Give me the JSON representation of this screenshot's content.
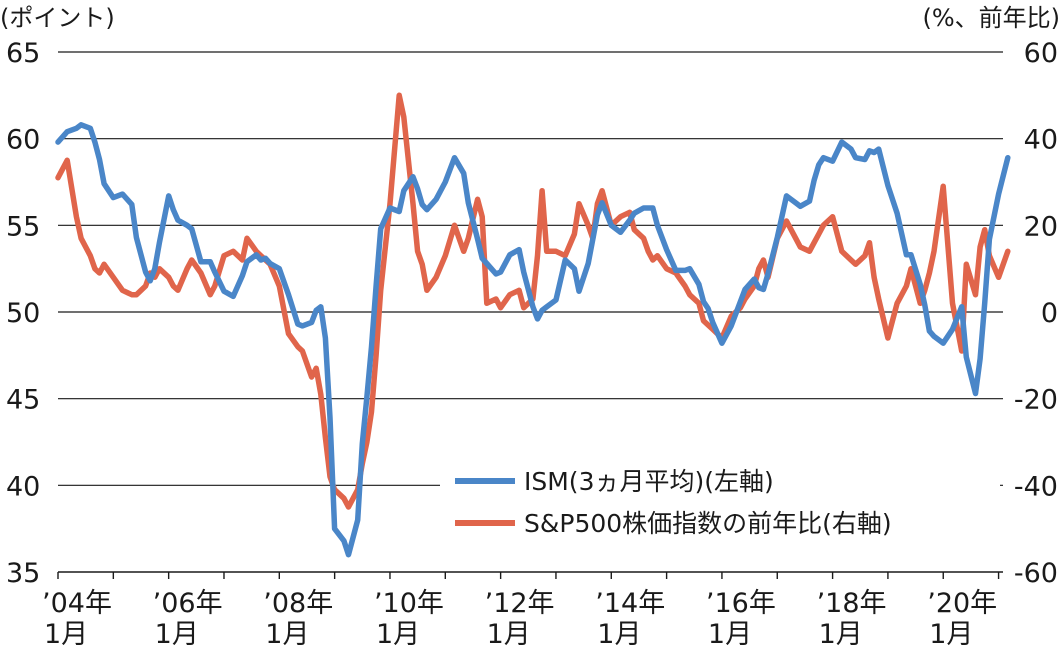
{
  "chart_data": {
    "type": "line",
    "left_axis_unit": "(ポイント)",
    "right_axis_unit": "(%、前年比)",
    "ylim_left": [
      35,
      65
    ],
    "ylim_right": [
      -60,
      60
    ],
    "yticks_left": [
      "65",
      "60",
      "55",
      "50",
      "45",
      "40",
      "35"
    ],
    "yticks_right": [
      "60",
      "40",
      "20",
      "0",
      "-20",
      "-40",
      "-60"
    ],
    "xtick_labels": [
      {
        "year": "’04年",
        "month": "1月"
      },
      {
        "year": "’06年",
        "month": "1月"
      },
      {
        "year": "’08年",
        "month": "1月"
      },
      {
        "year": "’10年",
        "month": "1月"
      },
      {
        "year": "’12年",
        "month": "1月"
      },
      {
        "year": "’14年",
        "month": "1月"
      },
      {
        "year": "’16年",
        "month": "1月"
      },
      {
        "year": "’18年",
        "month": "1月"
      },
      {
        "year": "’20年",
        "month": "1月"
      }
    ],
    "x_start": "2004-01",
    "x_end": "2021-01",
    "grid": "horizontal",
    "legend_position": "bottom-right",
    "series": [
      {
        "name": "ISM(3ヵ月平均)(左軸)",
        "axis": "left",
        "color": "#4a86c8",
        "points": [
          [
            "2004-01",
            59.8
          ],
          [
            "2004-03",
            60.4
          ],
          [
            "2004-05",
            60.6
          ],
          [
            "2004-06",
            60.8
          ],
          [
            "2004-08",
            60.6
          ],
          [
            "2004-09",
            59.8
          ],
          [
            "2004-10",
            58.8
          ],
          [
            "2004-11",
            57.4
          ],
          [
            "2005-01",
            56.6
          ],
          [
            "2005-03",
            56.8
          ],
          [
            "2005-05",
            56.2
          ],
          [
            "2005-06",
            54.3
          ],
          [
            "2005-08",
            52.3
          ],
          [
            "2005-09",
            51.8
          ],
          [
            "2005-10",
            52.5
          ],
          [
            "2005-11",
            54.0
          ],
          [
            "2006-01",
            56.7
          ],
          [
            "2006-02",
            55.9
          ],
          [
            "2006-03",
            55.3
          ],
          [
            "2006-05",
            55.0
          ],
          [
            "2006-06",
            54.8
          ],
          [
            "2006-08",
            52.9
          ],
          [
            "2006-10",
            52.9
          ],
          [
            "2006-11",
            52.3
          ],
          [
            "2007-01",
            51.2
          ],
          [
            "2007-03",
            50.9
          ],
          [
            "2007-05",
            52.1
          ],
          [
            "2007-06",
            52.9
          ],
          [
            "2007-08",
            53.3
          ],
          [
            "2007-09",
            53.0
          ],
          [
            "2007-10",
            53.1
          ],
          [
            "2007-11",
            52.8
          ],
          [
            "2008-01",
            52.5
          ],
          [
            "2008-03",
            51.0
          ],
          [
            "2008-05",
            49.3
          ],
          [
            "2008-06",
            49.2
          ],
          [
            "2008-08",
            49.4
          ],
          [
            "2008-09",
            50.1
          ],
          [
            "2008-10",
            50.3
          ],
          [
            "2008-11",
            48.5
          ],
          [
            "2008-12",
            43.9
          ],
          [
            "2009-01",
            37.5
          ],
          [
            "2009-03",
            36.8
          ],
          [
            "2009-04",
            36.0
          ],
          [
            "2009-06",
            38.0
          ],
          [
            "2009-07",
            42.4
          ],
          [
            "2009-08",
            45.1
          ],
          [
            "2009-09",
            48.0
          ],
          [
            "2009-10",
            51.5
          ],
          [
            "2009-11",
            54.8
          ],
          [
            "2010-01",
            56.0
          ],
          [
            "2010-03",
            55.8
          ],
          [
            "2010-04",
            57.0
          ],
          [
            "2010-06",
            57.8
          ],
          [
            "2010-07",
            57.1
          ],
          [
            "2010-08",
            56.2
          ],
          [
            "2010-09",
            55.9
          ],
          [
            "2010-11",
            56.5
          ],
          [
            "2011-01",
            57.5
          ],
          [
            "2011-03",
            58.9
          ],
          [
            "2011-05",
            58.0
          ],
          [
            "2011-06",
            56.3
          ],
          [
            "2011-08",
            54.2
          ],
          [
            "2011-09",
            53.1
          ],
          [
            "2011-10",
            52.8
          ],
          [
            "2011-12",
            52.2
          ],
          [
            "2012-01",
            52.3
          ],
          [
            "2012-03",
            53.3
          ],
          [
            "2012-05",
            53.6
          ],
          [
            "2012-06",
            52.3
          ],
          [
            "2012-08",
            50.3
          ],
          [
            "2012-09",
            49.6
          ],
          [
            "2012-10",
            50.1
          ],
          [
            "2012-11",
            50.3
          ],
          [
            "2013-01",
            50.7
          ],
          [
            "2013-03",
            53.0
          ],
          [
            "2013-05",
            52.5
          ],
          [
            "2013-06",
            51.2
          ],
          [
            "2013-08",
            52.8
          ],
          [
            "2013-09",
            54.2
          ],
          [
            "2013-10",
            55.6
          ],
          [
            "2013-11",
            56.3
          ],
          [
            "2014-01",
            55.0
          ],
          [
            "2014-03",
            54.6
          ],
          [
            "2014-05",
            55.3
          ],
          [
            "2014-06",
            55.7
          ],
          [
            "2014-08",
            56.0
          ],
          [
            "2014-09",
            56.0
          ],
          [
            "2014-10",
            56.0
          ],
          [
            "2014-11",
            55.0
          ],
          [
            "2015-01",
            53.6
          ],
          [
            "2015-03",
            52.4
          ],
          [
            "2015-05",
            52.4
          ],
          [
            "2015-06",
            52.5
          ],
          [
            "2015-08",
            51.6
          ],
          [
            "2015-09",
            50.6
          ],
          [
            "2015-10",
            50.2
          ],
          [
            "2015-11",
            49.4
          ],
          [
            "2016-01",
            48.2
          ],
          [
            "2016-03",
            49.2
          ],
          [
            "2016-05",
            50.6
          ],
          [
            "2016-06",
            51.3
          ],
          [
            "2016-08",
            51.9
          ],
          [
            "2016-09",
            51.4
          ],
          [
            "2016-10",
            51.3
          ],
          [
            "2016-11",
            52.2
          ],
          [
            "2017-01",
            54.3
          ],
          [
            "2017-03",
            56.7
          ],
          [
            "2017-05",
            56.3
          ],
          [
            "2017-06",
            56.1
          ],
          [
            "2017-08",
            56.4
          ],
          [
            "2017-09",
            57.6
          ],
          [
            "2017-10",
            58.5
          ],
          [
            "2017-11",
            58.9
          ],
          [
            "2018-01",
            58.7
          ],
          [
            "2018-03",
            59.8
          ],
          [
            "2018-05",
            59.4
          ],
          [
            "2018-06",
            58.9
          ],
          [
            "2018-08",
            58.8
          ],
          [
            "2018-09",
            59.3
          ],
          [
            "2018-10",
            59.2
          ],
          [
            "2018-11",
            59.4
          ],
          [
            "2019-01",
            57.3
          ],
          [
            "2019-03",
            55.7
          ],
          [
            "2019-05",
            53.3
          ],
          [
            "2019-06",
            53.3
          ],
          [
            "2019-08",
            51.6
          ],
          [
            "2019-09",
            50.4
          ],
          [
            "2019-10",
            48.9
          ],
          [
            "2019-11",
            48.6
          ],
          [
            "2020-01",
            48.2
          ],
          [
            "2020-03",
            49.0
          ],
          [
            "2020-05",
            50.3
          ],
          [
            "2020-06",
            47.4
          ],
          [
            "2020-08",
            45.3
          ],
          [
            "2020-09",
            47.3
          ],
          [
            "2020-10",
            50.5
          ],
          [
            "2020-11",
            54.2
          ],
          [
            "2021-01",
            56.8
          ],
          [
            "2021-03",
            58.9
          ]
        ]
      },
      {
        "name": "S&P500株価指数の前年比(右軸)",
        "axis": "right",
        "color": "#e0654b",
        "points": [
          [
            "2004-01",
            31
          ],
          [
            "2004-03",
            35
          ],
          [
            "2004-05",
            22
          ],
          [
            "2004-06",
            17
          ],
          [
            "2004-08",
            13
          ],
          [
            "2004-09",
            10
          ],
          [
            "2004-10",
            9
          ],
          [
            "2004-11",
            11
          ],
          [
            "2005-01",
            8
          ],
          [
            "2005-03",
            5
          ],
          [
            "2005-05",
            4
          ],
          [
            "2005-06",
            4
          ],
          [
            "2005-08",
            6
          ],
          [
            "2005-09",
            9
          ],
          [
            "2005-10",
            8
          ],
          [
            "2005-11",
            10
          ],
          [
            "2006-01",
            8
          ],
          [
            "2006-02",
            6
          ],
          [
            "2006-03",
            5
          ],
          [
            "2006-05",
            10
          ],
          [
            "2006-06",
            12
          ],
          [
            "2006-08",
            9
          ],
          [
            "2006-10",
            4
          ],
          [
            "2006-11",
            6
          ],
          [
            "2007-01",
            13
          ],
          [
            "2007-03",
            14
          ],
          [
            "2007-05",
            12
          ],
          [
            "2007-06",
            17
          ],
          [
            "2007-08",
            14
          ],
          [
            "2007-09",
            13
          ],
          [
            "2007-10",
            12
          ],
          [
            "2007-11",
            11
          ],
          [
            "2008-01",
            6
          ],
          [
            "2008-03",
            -5
          ],
          [
            "2008-05",
            -8
          ],
          [
            "2008-06",
            -9
          ],
          [
            "2008-08",
            -15
          ],
          [
            "2008-09",
            -13
          ],
          [
            "2008-10",
            -19
          ],
          [
            "2008-11",
            -29
          ],
          [
            "2008-12",
            -38
          ],
          [
            "2009-01",
            -41
          ],
          [
            "2009-03",
            -43
          ],
          [
            "2009-04",
            -45
          ],
          [
            "2009-06",
            -41
          ],
          [
            "2009-07",
            -35
          ],
          [
            "2009-08",
            -30
          ],
          [
            "2009-09",
            -23
          ],
          [
            "2009-10",
            -10
          ],
          [
            "2009-11",
            5
          ],
          [
            "2010-01",
            25
          ],
          [
            "2010-03",
            50
          ],
          [
            "2010-04",
            45
          ],
          [
            "2010-06",
            25
          ],
          [
            "2010-07",
            14
          ],
          [
            "2010-08",
            11
          ],
          [
            "2010-09",
            5
          ],
          [
            "2010-11",
            8
          ],
          [
            "2011-01",
            13
          ],
          [
            "2011-03",
            20
          ],
          [
            "2011-05",
            14
          ],
          [
            "2011-06",
            17
          ],
          [
            "2011-08",
            26
          ],
          [
            "2011-09",
            22
          ],
          [
            "2011-10",
            2
          ],
          [
            "2011-12",
            3
          ],
          [
            "2012-01",
            1
          ],
          [
            "2012-03",
            4
          ],
          [
            "2012-05",
            5
          ],
          [
            "2012-06",
            1
          ],
          [
            "2012-08",
            3
          ],
          [
            "2012-09",
            13
          ],
          [
            "2012-10",
            28
          ],
          [
            "2012-11",
            14
          ],
          [
            "2013-01",
            14
          ],
          [
            "2013-03",
            13
          ],
          [
            "2013-05",
            18
          ],
          [
            "2013-06",
            25
          ],
          [
            "2013-08",
            20
          ],
          [
            "2013-09",
            17
          ],
          [
            "2013-10",
            25
          ],
          [
            "2013-11",
            28
          ],
          [
            "2014-01",
            20
          ],
          [
            "2014-03",
            22
          ],
          [
            "2014-05",
            23
          ],
          [
            "2014-06",
            19
          ],
          [
            "2014-08",
            17
          ],
          [
            "2014-09",
            14
          ],
          [
            "2014-10",
            12
          ],
          [
            "2014-11",
            13
          ],
          [
            "2015-01",
            10
          ],
          [
            "2015-03",
            9
          ],
          [
            "2015-05",
            6
          ],
          [
            "2015-06",
            4
          ],
          [
            "2015-08",
            2
          ],
          [
            "2015-09",
            -2
          ],
          [
            "2015-10",
            -3
          ],
          [
            "2015-11",
            -4
          ],
          [
            "2016-01",
            -6
          ],
          [
            "2016-03",
            -1
          ],
          [
            "2016-05",
            1
          ],
          [
            "2016-06",
            3
          ],
          [
            "2016-08",
            6
          ],
          [
            "2016-09",
            10
          ],
          [
            "2016-10",
            12
          ],
          [
            "2016-11",
            8
          ],
          [
            "2017-01",
            17
          ],
          [
            "2017-03",
            21
          ],
          [
            "2017-05",
            17
          ],
          [
            "2017-06",
            15
          ],
          [
            "2017-08",
            14
          ],
          [
            "2017-09",
            16
          ],
          [
            "2017-10",
            18
          ],
          [
            "2017-11",
            20
          ],
          [
            "2018-01",
            22
          ],
          [
            "2018-03",
            14
          ],
          [
            "2018-05",
            12
          ],
          [
            "2018-06",
            11
          ],
          [
            "2018-08",
            13
          ],
          [
            "2018-09",
            16
          ],
          [
            "2018-10",
            8
          ],
          [
            "2018-11",
            3
          ],
          [
            "2019-01",
            -6
          ],
          [
            "2019-03",
            2
          ],
          [
            "2019-05",
            6
          ],
          [
            "2019-06",
            10
          ],
          [
            "2019-08",
            2
          ],
          [
            "2019-09",
            5
          ],
          [
            "2019-10",
            9
          ],
          [
            "2019-11",
            14
          ],
          [
            "2020-01",
            29
          ],
          [
            "2020-03",
            2
          ],
          [
            "2020-05",
            -9
          ],
          [
            "2020-06",
            11
          ],
          [
            "2020-08",
            4
          ],
          [
            "2020-09",
            15
          ],
          [
            "2020-10",
            19
          ],
          [
            "2020-11",
            13
          ],
          [
            "2021-01",
            8
          ],
          [
            "2021-03",
            14
          ]
        ]
      }
    ]
  }
}
